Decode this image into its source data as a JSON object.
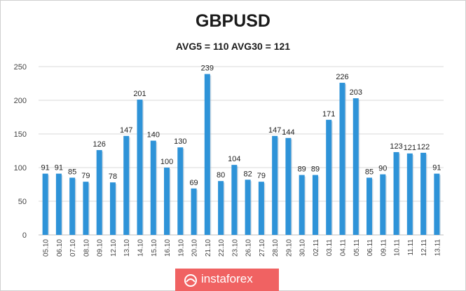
{
  "chart_data": {
    "type": "bar",
    "title": "GBPUSD",
    "subtitle": "AVG5 = 110 AVG30 = 121",
    "categories": [
      "05.10",
      "06.10",
      "07.10",
      "08.10",
      "09.10",
      "12.10",
      "13.10",
      "14.10",
      "15.10",
      "16.10",
      "19.10",
      "20.10",
      "21.10",
      "22.10",
      "23.10",
      "26.10",
      "27.10",
      "28.10",
      "29.10",
      "30.10",
      "02.11",
      "03.11",
      "04.11",
      "05.11",
      "06.11",
      "09.11",
      "10.11",
      "11.11",
      "12.11",
      "13.11"
    ],
    "values": [
      91,
      91,
      85,
      79,
      126,
      78,
      147,
      201,
      140,
      100,
      130,
      69,
      239,
      80,
      104,
      82,
      79,
      147,
      144,
      89,
      89,
      171,
      226,
      203,
      85,
      90,
      123,
      121,
      122,
      91
    ],
    "ylim": [
      0,
      250
    ],
    "yticks": [
      0,
      50,
      100,
      150,
      200,
      250
    ],
    "grid": true,
    "bar_color": "#2e93d8"
  },
  "brand": {
    "name": "instaforex",
    "color": "#f06262"
  }
}
